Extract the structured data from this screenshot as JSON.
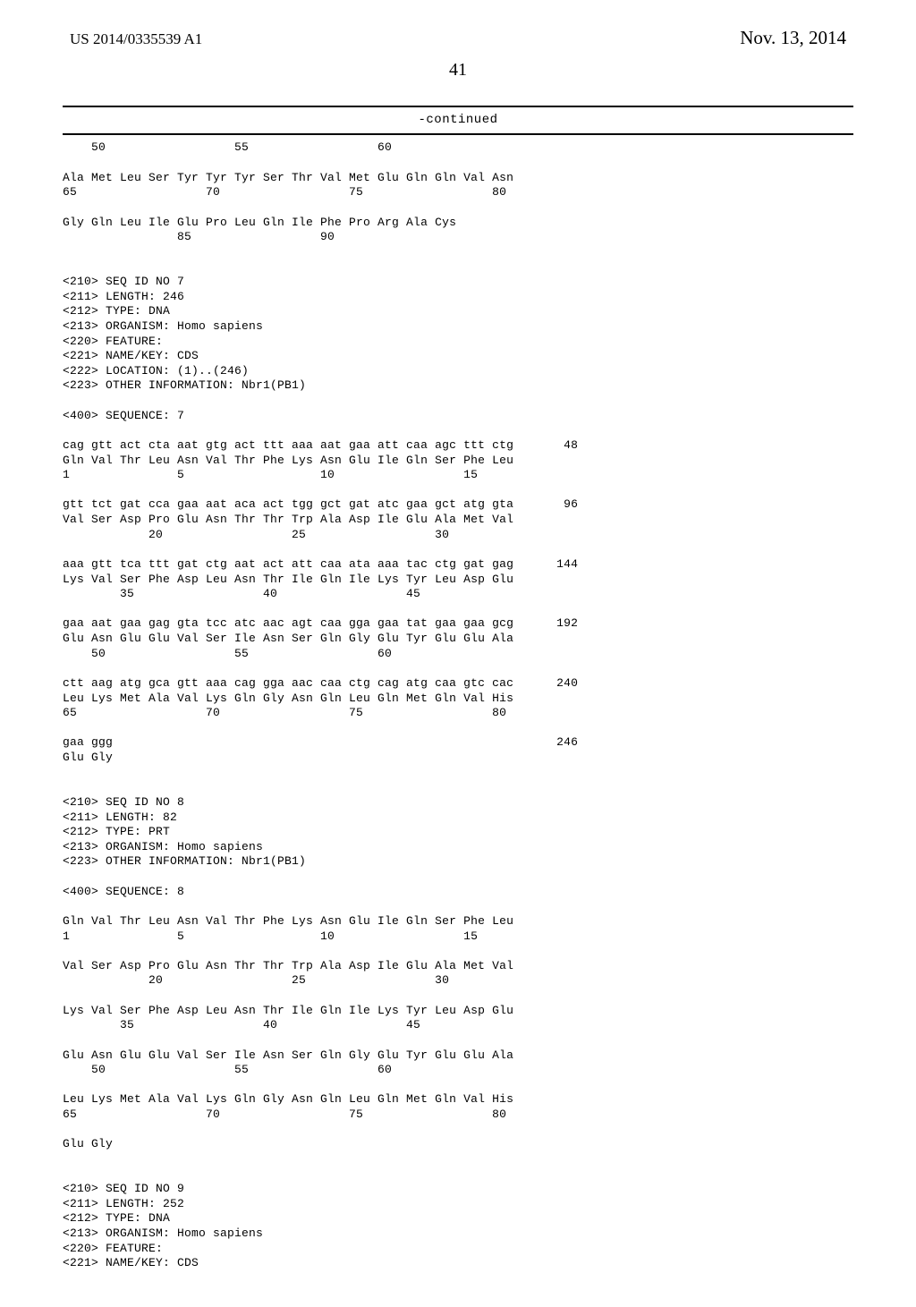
{
  "header": {
    "publication_number": "US 2014/0335539 A1",
    "publication_date": "Nov. 13, 2014",
    "page_number": "41",
    "continued_label": "-continued"
  },
  "sequence_text": "    50                  55                  60\n\nAla Met Leu Ser Tyr Tyr Tyr Ser Thr Val Met Glu Gln Gln Val Asn\n65                  70                  75                  80\n\nGly Gln Leu Ile Glu Pro Leu Gln Ile Phe Pro Arg Ala Cys\n                85                  90\n\n\n<210> SEQ ID NO 7\n<211> LENGTH: 246\n<212> TYPE: DNA\n<213> ORGANISM: Homo sapiens\n<220> FEATURE:\n<221> NAME/KEY: CDS\n<222> LOCATION: (1)..(246)\n<223> OTHER INFORMATION: Nbr1(PB1)\n\n<400> SEQUENCE: 7\n\ncag gtt act cta aat gtg act ttt aaa aat gaa att caa agc ttt ctg       48\nGln Val Thr Leu Asn Val Thr Phe Lys Asn Glu Ile Gln Ser Phe Leu\n1               5                   10                  15\n\ngtt tct gat cca gaa aat aca act tgg gct gat atc gaa gct atg gta       96\nVal Ser Asp Pro Glu Asn Thr Thr Trp Ala Asp Ile Glu Ala Met Val\n            20                  25                  30\n\naaa gtt tca ttt gat ctg aat act att caa ata aaa tac ctg gat gag      144\nLys Val Ser Phe Asp Leu Asn Thr Ile Gln Ile Lys Tyr Leu Asp Glu\n        35                  40                  45\n\ngaa aat gaa gag gta tcc atc aac agt caa gga gaa tat gaa gaa gcg      192\nGlu Asn Glu Glu Val Ser Ile Asn Ser Gln Gly Glu Tyr Glu Glu Ala\n    50                  55                  60\n\nctt aag atg gca gtt aaa cag gga aac caa ctg cag atg caa gtc cac      240\nLeu Lys Met Ala Val Lys Gln Gly Asn Gln Leu Gln Met Gln Val His\n65                  70                  75                  80\n\ngaa ggg                                                              246\nGlu Gly\n\n\n<210> SEQ ID NO 8\n<211> LENGTH: 82\n<212> TYPE: PRT\n<213> ORGANISM: Homo sapiens\n<223> OTHER INFORMATION: Nbr1(PB1)\n\n<400> SEQUENCE: 8\n\nGln Val Thr Leu Asn Val Thr Phe Lys Asn Glu Ile Gln Ser Phe Leu\n1               5                   10                  15\n\nVal Ser Asp Pro Glu Asn Thr Thr Trp Ala Asp Ile Glu Ala Met Val\n            20                  25                  30\n\nLys Val Ser Phe Asp Leu Asn Thr Ile Gln Ile Lys Tyr Leu Asp Glu\n        35                  40                  45\n\nGlu Asn Glu Glu Val Ser Ile Asn Ser Gln Gly Glu Tyr Glu Glu Ala\n    50                  55                  60\n\nLeu Lys Met Ala Val Lys Gln Gly Asn Gln Leu Gln Met Gln Val His\n65                  70                  75                  80\n\nGlu Gly\n\n\n<210> SEQ ID NO 9\n<211> LENGTH: 252\n<212> TYPE: DNA\n<213> ORGANISM: Homo sapiens\n<220> FEATURE:\n<221> NAME/KEY: CDS"
}
